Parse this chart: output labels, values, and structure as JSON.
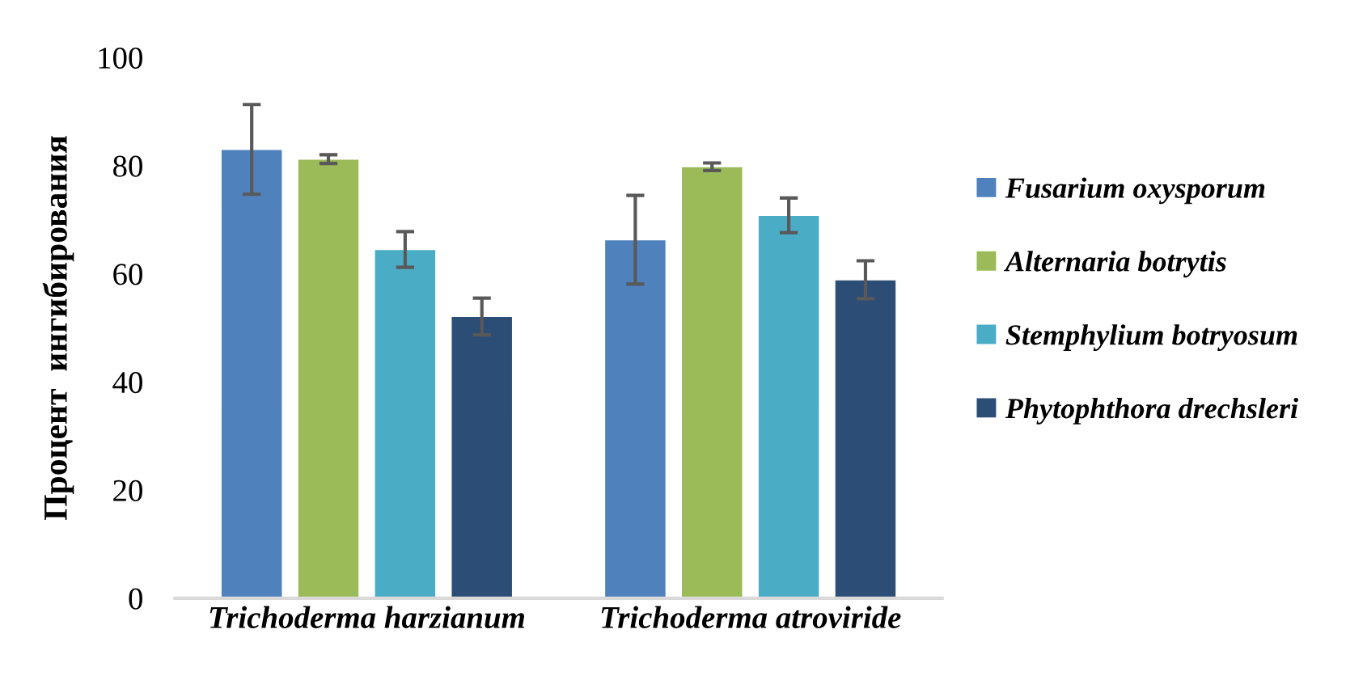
{
  "chart_data": {
    "type": "bar",
    "ylabel": "Процент  ингибирования",
    "categories": [
      "Trichoderma harzianum",
      "Trichoderma atroviride"
    ],
    "series": [
      {
        "name": "Fusarium oxysporum",
        "color": "#4f81bd",
        "values": [
          83,
          66.3
        ],
        "errors": [
          8.3,
          8.2
        ]
      },
      {
        "name": "Alternaria botrytis",
        "color": "#9bbb59",
        "values": [
          81.2,
          79.8
        ],
        "errors": [
          0.8,
          0.7
        ]
      },
      {
        "name": "Stemphylium botryosum",
        "color": "#4bacc6",
        "values": [
          64.5,
          70.8
        ],
        "errors": [
          3.3,
          3.2
        ]
      },
      {
        "name": "Phytophthora drechsleri",
        "color": "#2c4d75",
        "values": [
          52.1,
          58.9
        ],
        "errors": [
          3.4,
          3.5
        ]
      }
    ],
    "ylim": [
      0,
      100
    ],
    "yticks": [
      0,
      20,
      40,
      60,
      80,
      100
    ],
    "grid": false,
    "legend": "right"
  }
}
